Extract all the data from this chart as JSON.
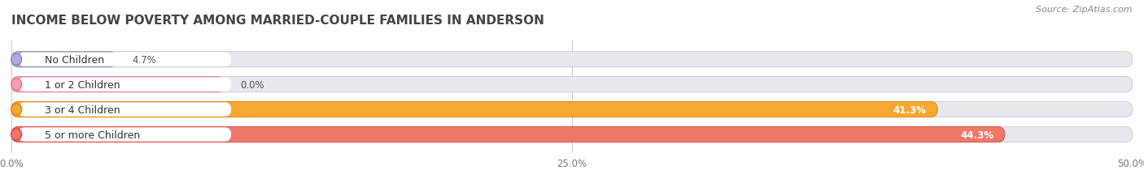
{
  "title": "INCOME BELOW POVERTY AMONG MARRIED-COUPLE FAMILIES IN ANDERSON",
  "source": "Source: ZipAtlas.com",
  "categories": [
    "No Children",
    "1 or 2 Children",
    "3 or 4 Children",
    "5 or more Children"
  ],
  "values": [
    4.7,
    0.0,
    41.3,
    44.3
  ],
  "value_labels": [
    "4.7%",
    "0.0%",
    "41.3%",
    "44.3%"
  ],
  "bar_colors": [
    "#aaaadd",
    "#f4a0b8",
    "#f5a830",
    "#f07868"
  ],
  "bar_bg_color": "#e8e8ee",
  "circle_colors": [
    "#8888bb",
    "#e07888",
    "#e08010",
    "#d04848"
  ],
  "label_bg_color": "#ffffff",
  "background_color": "#ffffff",
  "xlim": [
    0,
    50.0
  ],
  "xticks": [
    0.0,
    25.0,
    50.0
  ],
  "xticklabels": [
    "0.0%",
    "25.0%",
    "50.0%"
  ],
  "bar_height": 0.62,
  "label_fontsize": 9.0,
  "title_fontsize": 11.0,
  "value_fontsize": 8.5,
  "source_fontsize": 8.0,
  "stub_value": 9.5
}
